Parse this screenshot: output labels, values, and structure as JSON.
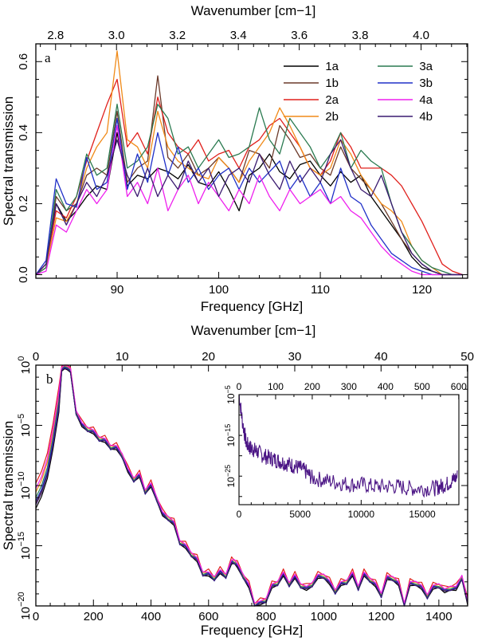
{
  "chart_data": [
    {
      "panel": "a",
      "type": "line",
      "xlabel": "Frequency [GHz]",
      "ylabel": "Spectral transmission",
      "top_xlabel": "Wavenumber [cm−1]",
      "xlim": [
        82,
        124.5
      ],
      "ylim": [
        -0.01,
        0.65
      ],
      "xticks": [
        90,
        100,
        110,
        120
      ],
      "yticks": [
        0.0,
        0.2,
        0.4,
        0.6
      ],
      "ytick_labels": [
        "0.0",
        "0.2",
        "0.4",
        "0.6"
      ],
      "top_ticks": [
        2.8,
        3.0,
        3.2,
        3.4,
        3.6,
        3.8,
        4.0
      ],
      "top_tick_labels": [
        "2.8",
        "3.0",
        "3.2",
        "3.4",
        "3.6",
        "3.8",
        "4.0"
      ],
      "legend_position": "top-right",
      "series": [
        {
          "name": "1a",
          "color": "#000000",
          "x": [
            82,
            83,
            84,
            85,
            86,
            87,
            88,
            89,
            90,
            91,
            92,
            93,
            94,
            95,
            96,
            97,
            98,
            99,
            100,
            101,
            102,
            103,
            104,
            105,
            106,
            107,
            108,
            109,
            110,
            111,
            112,
            113,
            114,
            115,
            116,
            117,
            118,
            119,
            120,
            121,
            122,
            123,
            124
          ],
          "y": [
            0.0,
            0.02,
            0.2,
            0.15,
            0.18,
            0.22,
            0.25,
            0.24,
            0.4,
            0.25,
            0.28,
            0.27,
            0.3,
            0.29,
            0.27,
            0.31,
            0.26,
            0.25,
            0.29,
            0.24,
            0.18,
            0.28,
            0.3,
            0.34,
            0.29,
            0.27,
            0.31,
            0.32,
            0.28,
            0.25,
            0.29,
            0.26,
            0.28,
            0.22,
            0.18,
            0.14,
            0.1,
            0.05,
            0.02,
            0.01,
            0.0,
            0.0,
            0.0
          ]
        },
        {
          "name": "1b",
          "color": "#6b3a2a",
          "x": [
            82,
            83,
            84,
            85,
            86,
            87,
            88,
            89,
            90,
            91,
            92,
            93,
            94,
            95,
            96,
            97,
            98,
            99,
            100,
            101,
            102,
            103,
            104,
            105,
            106,
            107,
            108,
            109,
            110,
            111,
            112,
            113,
            114,
            115,
            116,
            117,
            118,
            119,
            120,
            121,
            122,
            123,
            124
          ],
          "y": [
            0.0,
            0.03,
            0.22,
            0.18,
            0.2,
            0.28,
            0.3,
            0.28,
            0.46,
            0.26,
            0.3,
            0.32,
            0.56,
            0.33,
            0.3,
            0.34,
            0.28,
            0.3,
            0.33,
            0.3,
            0.26,
            0.35,
            0.34,
            0.3,
            0.42,
            0.38,
            0.33,
            0.34,
            0.3,
            0.28,
            0.36,
            0.3,
            0.27,
            0.24,
            0.2,
            0.15,
            0.1,
            0.06,
            0.03,
            0.01,
            0.0,
            0.0,
            0.0
          ]
        },
        {
          "name": "2a",
          "color": "#e0201c",
          "x": [
            82,
            83,
            84,
            85,
            86,
            87,
            88,
            89,
            90,
            91,
            92,
            93,
            94,
            95,
            96,
            97,
            98,
            99,
            100,
            101,
            102,
            103,
            104,
            105,
            106,
            107,
            108,
            109,
            110,
            111,
            112,
            113,
            114,
            115,
            116,
            117,
            118,
            119,
            120,
            121,
            122,
            123,
            124
          ],
          "y": [
            0.0,
            0.03,
            0.18,
            0.16,
            0.22,
            0.32,
            0.4,
            0.48,
            0.55,
            0.36,
            0.4,
            0.34,
            0.5,
            0.4,
            0.36,
            0.34,
            0.38,
            0.32,
            0.34,
            0.35,
            0.3,
            0.36,
            0.38,
            0.42,
            0.44,
            0.4,
            0.36,
            0.3,
            0.28,
            0.32,
            0.4,
            0.36,
            0.3,
            0.3,
            0.3,
            0.28,
            0.25,
            0.2,
            0.15,
            0.09,
            0.03,
            0.01,
            0.0
          ]
        },
        {
          "name": "2b",
          "color": "#f08a18",
          "x": [
            82,
            83,
            84,
            85,
            86,
            87,
            88,
            89,
            90,
            91,
            92,
            93,
            94,
            95,
            96,
            97,
            98,
            99,
            100,
            101,
            102,
            103,
            104,
            105,
            106,
            107,
            108,
            109,
            110,
            111,
            112,
            113,
            114,
            115,
            116,
            117,
            118,
            119,
            120,
            121,
            122,
            123,
            124
          ],
          "y": [
            0.0,
            0.02,
            0.16,
            0.15,
            0.2,
            0.3,
            0.36,
            0.4,
            0.63,
            0.38,
            0.36,
            0.3,
            0.46,
            0.36,
            0.32,
            0.3,
            0.28,
            0.27,
            0.33,
            0.3,
            0.26,
            0.32,
            0.36,
            0.4,
            0.47,
            0.42,
            0.36,
            0.3,
            0.28,
            0.3,
            0.38,
            0.34,
            0.28,
            0.24,
            0.2,
            0.18,
            0.15,
            0.08,
            0.04,
            0.02,
            0.0,
            0.0,
            0.0
          ]
        },
        {
          "name": "3a",
          "color": "#2a7a50",
          "x": [
            82,
            83,
            84,
            85,
            86,
            87,
            88,
            89,
            90,
            91,
            92,
            93,
            94,
            95,
            96,
            97,
            98,
            99,
            100,
            101,
            102,
            103,
            104,
            105,
            106,
            107,
            108,
            109,
            110,
            111,
            112,
            113,
            114,
            115,
            116,
            117,
            118,
            119,
            120,
            121,
            122,
            123,
            124
          ],
          "y": [
            0.0,
            0.02,
            0.24,
            0.18,
            0.22,
            0.34,
            0.28,
            0.3,
            0.48,
            0.3,
            0.32,
            0.36,
            0.48,
            0.44,
            0.34,
            0.36,
            0.3,
            0.34,
            0.38,
            0.33,
            0.34,
            0.36,
            0.47,
            0.38,
            0.34,
            0.44,
            0.4,
            0.36,
            0.3,
            0.34,
            0.4,
            0.3,
            0.35,
            0.32,
            0.3,
            0.2,
            0.12,
            0.08,
            0.04,
            0.02,
            0.01,
            0.0,
            0.0
          ]
        },
        {
          "name": "3b",
          "color": "#2030c8",
          "x": [
            82,
            83,
            84,
            85,
            86,
            87,
            88,
            89,
            90,
            91,
            92,
            93,
            94,
            95,
            96,
            97,
            98,
            99,
            100,
            101,
            102,
            103,
            104,
            105,
            106,
            107,
            108,
            109,
            110,
            111,
            112,
            113,
            114,
            115,
            116,
            117,
            118,
            119,
            120,
            121,
            122,
            123,
            124
          ],
          "y": [
            0.0,
            0.04,
            0.27,
            0.2,
            0.19,
            0.33,
            0.24,
            0.26,
            0.44,
            0.24,
            0.34,
            0.26,
            0.4,
            0.28,
            0.36,
            0.26,
            0.3,
            0.24,
            0.28,
            0.3,
            0.24,
            0.3,
            0.26,
            0.29,
            0.32,
            0.24,
            0.28,
            0.22,
            0.26,
            0.2,
            0.3,
            0.22,
            0.2,
            0.14,
            0.1,
            0.06,
            0.04,
            0.02,
            0.01,
            0.0,
            0.0,
            0.0,
            0.0
          ]
        },
        {
          "name": "4a",
          "color": "#ee20ee",
          "x": [
            82,
            83,
            84,
            85,
            86,
            87,
            88,
            89,
            90,
            91,
            92,
            93,
            94,
            95,
            96,
            97,
            98,
            99,
            100,
            101,
            102,
            103,
            104,
            105,
            106,
            107,
            108,
            109,
            110,
            111,
            112,
            113,
            114,
            115,
            116,
            117,
            118,
            119,
            120,
            121,
            122,
            123,
            124
          ],
          "y": [
            0.0,
            0.01,
            0.14,
            0.12,
            0.18,
            0.24,
            0.2,
            0.24,
            0.42,
            0.22,
            0.26,
            0.2,
            0.3,
            0.18,
            0.24,
            0.28,
            0.2,
            0.26,
            0.22,
            0.18,
            0.24,
            0.2,
            0.28,
            0.22,
            0.18,
            0.24,
            0.2,
            0.22,
            0.24,
            0.2,
            0.22,
            0.18,
            0.16,
            0.12,
            0.08,
            0.05,
            0.03,
            0.01,
            0.0,
            0.0,
            0.0,
            0.0,
            0.0
          ]
        },
        {
          "name": "4b",
          "color": "#3a1a70",
          "x": [
            82,
            83,
            84,
            85,
            86,
            87,
            88,
            89,
            90,
            91,
            92,
            93,
            94,
            95,
            96,
            97,
            98,
            99,
            100,
            101,
            102,
            103,
            104,
            105,
            106,
            107,
            108,
            109,
            110,
            111,
            112,
            113,
            114,
            115,
            116,
            117,
            118,
            119,
            120,
            121,
            122,
            123,
            124
          ],
          "y": [
            0.0,
            0.03,
            0.2,
            0.14,
            0.2,
            0.26,
            0.22,
            0.28,
            0.38,
            0.28,
            0.22,
            0.3,
            0.22,
            0.28,
            0.24,
            0.32,
            0.26,
            0.3,
            0.22,
            0.28,
            0.3,
            0.26,
            0.34,
            0.28,
            0.24,
            0.32,
            0.26,
            0.3,
            0.26,
            0.34,
            0.38,
            0.3,
            0.24,
            0.22,
            0.28,
            0.2,
            0.12,
            0.06,
            0.03,
            0.01,
            0.0,
            0.0,
            0.0
          ]
        }
      ]
    },
    {
      "panel": "b",
      "type": "line",
      "xlabel": "Frequency [GHz]",
      "ylabel": "Spectral transmission",
      "top_xlabel": "Wavenumber [cm−1]",
      "xlim": [
        0,
        1500
      ],
      "ylim_log10": [
        -20,
        0
      ],
      "xticks": [
        0,
        200,
        400,
        600,
        800,
        1000,
        1200,
        1400
      ],
      "yticks_log10": [
        -20,
        -15,
        -10,
        -5,
        0
      ],
      "ytick_labels": [
        "10",
        "10",
        "10",
        "10",
        "10"
      ],
      "ytick_exponents": [
        "−20",
        "−15",
        "−10",
        "−5",
        "0"
      ],
      "top_ticks": [
        0,
        10,
        20,
        30,
        40,
        50
      ],
      "top_tick_labels": [
        "0",
        "10",
        "20",
        "30",
        "40",
        "50"
      ],
      "series_colors": [
        "#000000",
        "#6b3a2a",
        "#e0201c",
        "#f08a18",
        "#2a7a50",
        "#2030c8",
        "#ee20ee",
        "#3a1a70"
      ],
      "envelope_log10": {
        "x": [
          0,
          20,
          40,
          60,
          80,
          90,
          100,
          110,
          120,
          140,
          160,
          180,
          200,
          220,
          240,
          260,
          280,
          300,
          320,
          340,
          360,
          380,
          400,
          420,
          440,
          460,
          480,
          500,
          520,
          540,
          560,
          580,
          600,
          620,
          640,
          660,
          680,
          690,
          700,
          720,
          740,
          760,
          780,
          800,
          820,
          840,
          860,
          880,
          900,
          920,
          940,
          960,
          980,
          1000,
          1020,
          1040,
          1060,
          1080,
          1100,
          1120,
          1140,
          1160,
          1180,
          1200,
          1220,
          1240,
          1260,
          1280,
          1300,
          1320,
          1340,
          1360,
          1380,
          1400,
          1420,
          1440,
          1460,
          1480,
          1500
        ],
        "y": [
          -11,
          -10,
          -8.5,
          -6,
          -3,
          -0.5,
          -0.3,
          -0.4,
          -0.6,
          -4,
          -5.2,
          -5.4,
          -5.8,
          -6.2,
          -6.5,
          -6.9,
          -7.1,
          -7.6,
          -9,
          -9.6,
          -9.4,
          -10.6,
          -10.2,
          -11.2,
          -12.6,
          -12.8,
          -13.4,
          -14.8,
          -15.3,
          -15.8,
          -16.4,
          -17.4,
          -17.6,
          -17.8,
          -17.4,
          -17.6,
          -16.6,
          -16.4,
          -16.9,
          -17.6,
          -18.6,
          -20,
          -20,
          -19.6,
          -18.6,
          -18.2,
          -17.6,
          -18.3,
          -17.8,
          -18.4,
          -18.8,
          -18.3,
          -17.8,
          -17.6,
          -18.3,
          -18.9,
          -18.4,
          -18.1,
          -17.6,
          -18.6,
          -17.6,
          -17.9,
          -18.5,
          -19.2,
          -17.9,
          -17.8,
          -18.4,
          -20,
          -18.4,
          -18.2,
          -18.7,
          -19.3,
          -18.7,
          -18.4,
          -19,
          -18.6,
          -18.8,
          -17.7,
          -20
        ]
      },
      "inset": {
        "xlim": [
          0,
          18000
        ],
        "ylim_log10": [
          -32,
          -5
        ],
        "xticks": [
          0,
          5000,
          10000,
          15000
        ],
        "yticks_log10": [
          -5,
          -15,
          -25
        ],
        "ytick_labels": [
          "10",
          "10",
          "10"
        ],
        "ytick_exponents": [
          "−5",
          "−15",
          "−25"
        ],
        "top_ticks": [
          0,
          100,
          200,
          300,
          400,
          500,
          600
        ],
        "top_tick_labels": [
          "0",
          "100",
          "200",
          "300",
          "400",
          "500",
          "600"
        ],
        "color": "#4b1585",
        "x": [
          0,
          300,
          600,
          900,
          1200,
          1500,
          2000,
          2500,
          3000,
          3500,
          4000,
          4500,
          5000,
          5500,
          6000,
          7000,
          8000,
          9000,
          10000,
          11000,
          12000,
          13000,
          14000,
          15000,
          16000,
          16500,
          17000,
          17500,
          17900
        ],
        "y": [
          -5,
          -12,
          -17,
          -18,
          -18.5,
          -19,
          -20,
          -20.5,
          -21,
          -21.5,
          -22,
          -22.5,
          -23,
          -24,
          -25.5,
          -26,
          -26.5,
          -27,
          -27,
          -27.5,
          -27.5,
          -27.5,
          -28,
          -28,
          -28,
          -27.5,
          -27,
          -26,
          -25
        ]
      }
    }
  ]
}
